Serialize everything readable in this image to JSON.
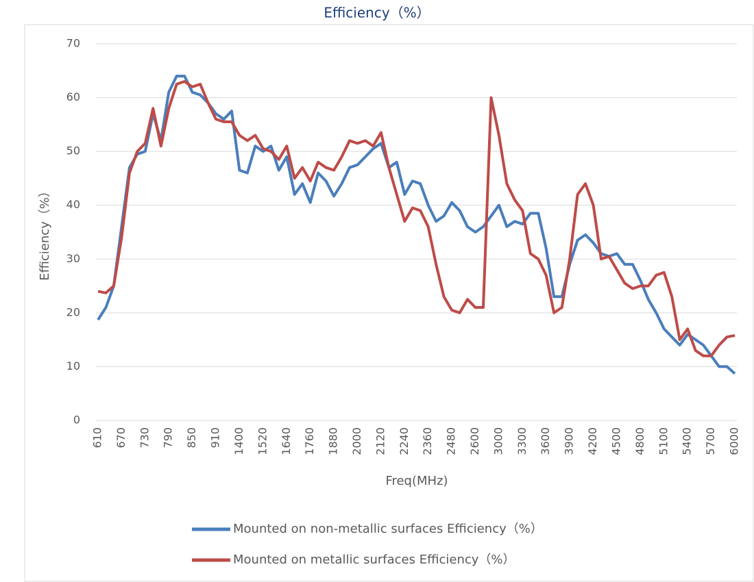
{
  "chart_data": {
    "type": "line",
    "title": "Efficiency（%）",
    "x_label": "Freq(MHz)",
    "y_label": "Efficiency（%）",
    "categories": [
      "610",
      null,
      null,
      "670",
      null,
      null,
      "730",
      null,
      null,
      "790",
      null,
      null,
      "850",
      null,
      null,
      "910",
      null,
      null,
      "1400",
      null,
      null,
      "1520",
      null,
      null,
      "1640",
      null,
      null,
      "1760",
      null,
      null,
      "1880",
      null,
      null,
      "2000",
      null,
      null,
      "2120",
      null,
      null,
      "2240",
      null,
      null,
      "2360",
      null,
      null,
      "2480",
      null,
      null,
      "2600",
      null,
      null,
      "3000",
      null,
      null,
      "3300",
      null,
      null,
      "3600",
      null,
      null,
      "3900",
      null,
      null,
      "4200",
      null,
      null,
      "4500",
      null,
      null,
      "4800",
      null,
      null,
      "5100",
      null,
      null,
      "5400",
      null,
      null,
      "5700",
      null,
      null,
      "6000"
    ],
    "series": [
      {
        "name": "Mounted on non-metallic surfaces Efficiency（%）",
        "color": "#4a7ebb",
        "values": [
          18.7,
          21,
          25,
          36,
          47,
          49.5,
          50,
          57,
          52,
          61,
          64,
          64,
          61,
          60.5,
          59,
          57,
          56,
          57.5,
          46.5,
          46,
          51,
          50,
          51,
          46.5,
          49,
          42,
          44,
          40.5,
          46,
          44.5,
          41.7,
          44,
          47,
          47.5,
          49,
          50.5,
          51.5,
          47,
          48,
          42,
          44.5,
          44,
          40,
          37,
          38,
          40.5,
          39,
          36,
          35,
          36,
          38,
          40,
          36,
          37,
          36.5,
          38.5,
          38.5,
          32,
          23,
          23,
          29,
          33.5,
          34.5,
          33,
          31,
          30.5,
          31,
          29,
          29,
          26,
          22.5,
          20,
          17,
          15.5,
          14,
          16,
          15,
          14,
          12,
          10,
          10,
          8.7
        ]
      },
      {
        "name": "Mounted on metallic surfaces Efficiency（%）",
        "color": "#be4b48",
        "values": [
          24,
          23.7,
          25,
          34,
          46,
          50,
          51.5,
          58,
          51,
          58,
          62.5,
          63,
          62,
          62.5,
          59,
          56,
          55.5,
          55.5,
          53,
          52,
          53,
          50.5,
          50,
          48.5,
          51,
          45,
          47,
          44.5,
          48,
          47,
          46.5,
          49,
          52,
          51.5,
          52,
          51,
          53.5,
          47,
          42,
          37,
          39.5,
          39,
          36,
          29,
          23,
          20.5,
          20,
          22.5,
          21,
          21,
          60,
          53,
          44,
          41,
          39,
          31,
          30,
          27,
          20,
          21,
          30,
          42,
          44,
          40,
          30,
          30.5,
          28,
          25.5,
          24.5,
          25,
          25,
          27,
          27.5,
          23,
          15,
          17,
          13,
          12,
          12,
          14,
          15.5,
          15.8
        ]
      }
    ],
    "ylim": [
      0,
      70
    ],
    "yticks": [
      0,
      10,
      20,
      30,
      40,
      50,
      60,
      70
    ],
    "grid": true
  }
}
